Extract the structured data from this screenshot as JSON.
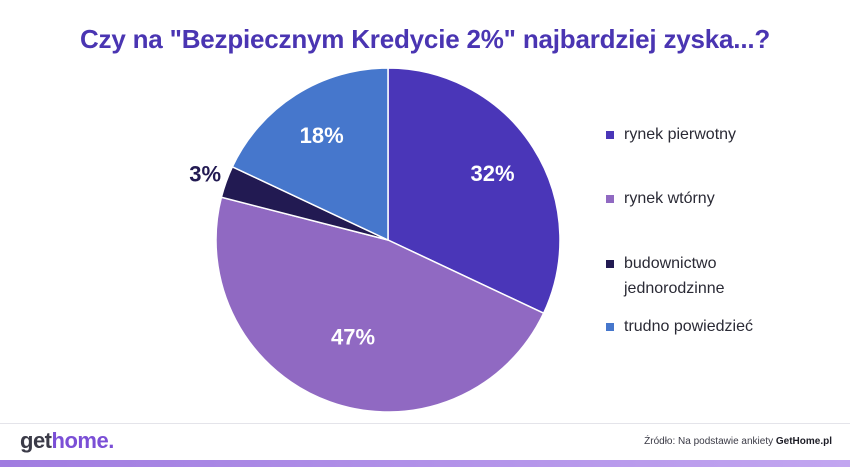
{
  "chart_data": {
    "type": "pie",
    "title": "Czy na \"Bezpiecznym Kredycie 2%\" najbardziej zyska...?",
    "slices": [
      {
        "label": "rynek pierwotny",
        "value": 32,
        "display": "32%",
        "color": "#4a36b8",
        "text_color": "#ffffff"
      },
      {
        "label": "rynek wtórny",
        "value": 47,
        "display": "47%",
        "color": "#9069c2",
        "text_color": "#ffffff"
      },
      {
        "label": "budownictwo jednorodzinne",
        "value": 3,
        "display": "3%",
        "color": "#221a52",
        "text_color": "#221a52"
      },
      {
        "label": "trudno powiedzieć",
        "value": 18,
        "display": "18%",
        "color": "#4677cc",
        "text_color": "#ffffff"
      }
    ],
    "legend_position": "right"
  },
  "footer": {
    "logo_get": "get",
    "logo_home": "home",
    "logo_dot": ".",
    "source_prefix": "Źródło: Na podstawie ankiety ",
    "source_name": "GetHome.pl"
  }
}
